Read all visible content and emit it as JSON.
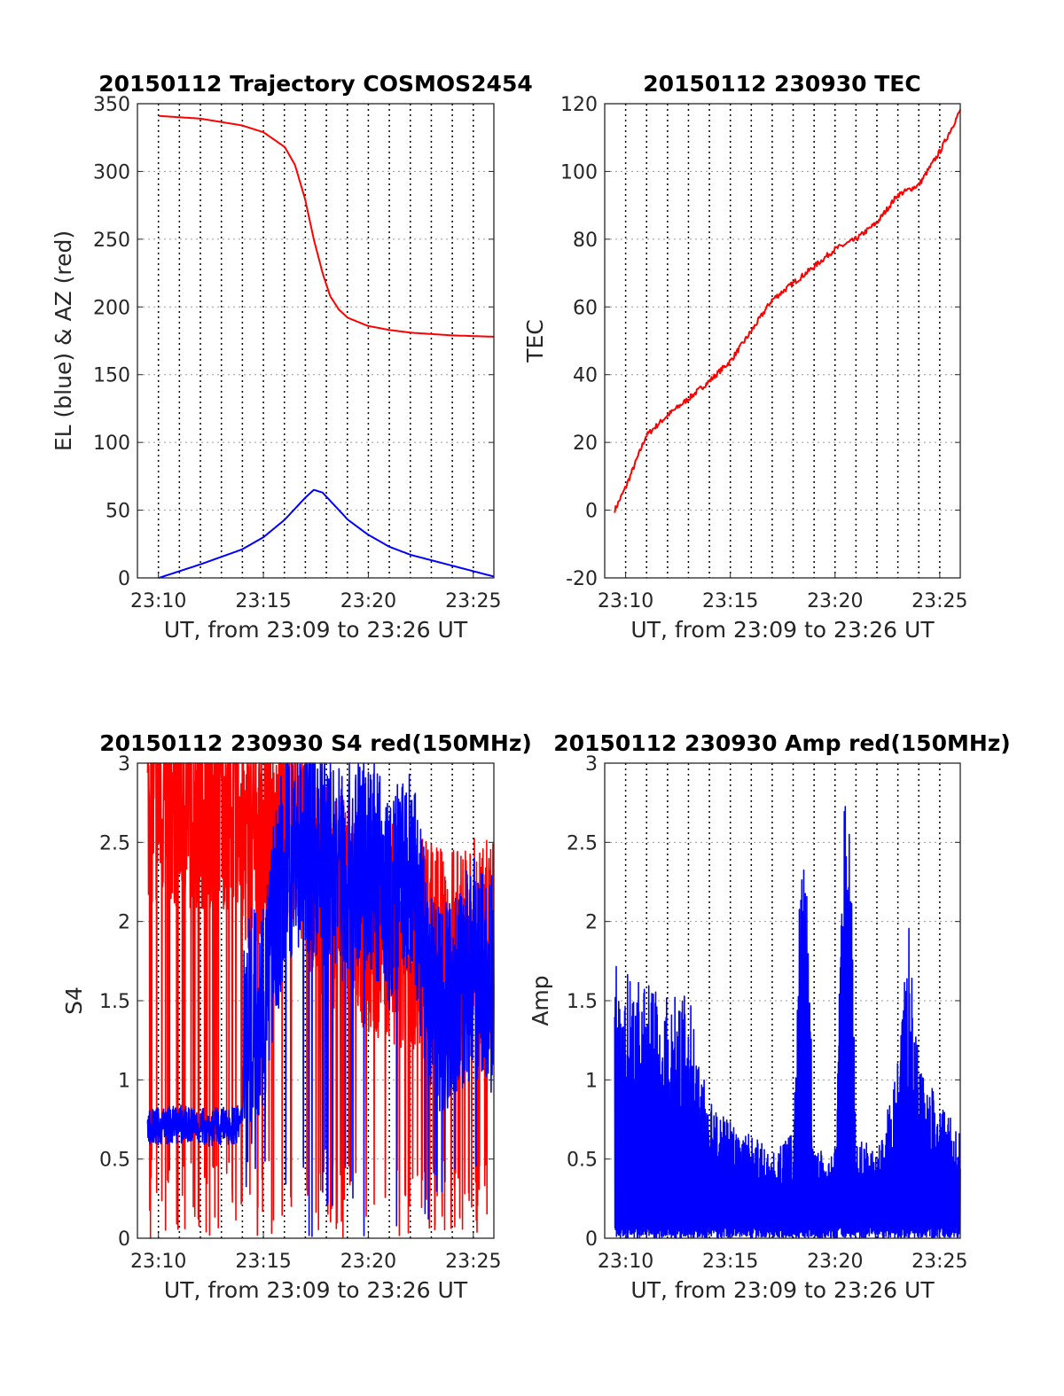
{
  "colors": {
    "el": "#0000ff",
    "az": "#ff0000",
    "grid": "#000000",
    "axis": "#262626"
  },
  "chart_data": [
    {
      "type": "line",
      "title": "20150112 Trajectory COSMOS2454",
      "xlabel": "UT, from 23:09 to 23:26 UT",
      "ylabel": "EL (blue) & AZ (red)",
      "xlim": [
        23.15,
        23.433
      ],
      "ylim": [
        0,
        350
      ],
      "yticks": [
        0,
        50,
        100,
        150,
        200,
        250,
        300,
        350
      ],
      "xticks": [
        "23:10",
        "23:15",
        "23:20",
        "23:25"
      ],
      "grid": "dotted vertical every minute, dotted horizontal at y ticks",
      "series": [
        {
          "color": "red",
          "x": [
            23.167,
            23.2,
            23.233,
            23.25,
            23.267,
            23.275,
            23.283,
            23.29,
            23.297,
            23.303,
            23.31,
            23.317,
            23.333,
            23.35,
            23.367,
            23.4,
            23.433
          ],
          "values": [
            341,
            339,
            334,
            329,
            318,
            305,
            280,
            250,
            225,
            208,
            198,
            192,
            186,
            183,
            181,
            179,
            178
          ]
        },
        {
          "color": "blue",
          "x": [
            23.167,
            23.2,
            23.233,
            23.25,
            23.267,
            23.283,
            23.29,
            23.297,
            23.303,
            23.31,
            23.317,
            23.333,
            23.35,
            23.367,
            23.4,
            23.433
          ],
          "values": [
            0,
            10,
            21,
            30,
            43,
            59,
            65,
            63,
            57,
            50,
            43,
            32,
            23,
            17,
            9,
            1
          ]
        }
      ]
    },
    {
      "type": "line",
      "title": "20150112 230930 TEC",
      "xlabel": "UT, from 23:09 to 23:26 UT",
      "ylabel": "TEC",
      "xlim": [
        23.15,
        23.433
      ],
      "ylim": [
        -20,
        120
      ],
      "yticks": [
        -20,
        0,
        20,
        40,
        60,
        80,
        100,
        120
      ],
      "xticks": [
        "23:10",
        "23:15",
        "23:20",
        "23:25"
      ],
      "series": [
        {
          "color": "red",
          "x": [
            23.158,
            23.167,
            23.183,
            23.2,
            23.217,
            23.233,
            23.25,
            23.267,
            23.283,
            23.3,
            23.317,
            23.333,
            23.35,
            23.367,
            23.383,
            23.4,
            23.417,
            23.433
          ],
          "values": [
            0,
            7,
            22,
            28,
            33,
            38,
            44,
            53,
            62,
            67,
            72,
            77,
            80,
            85,
            93,
            96,
            106,
            118
          ]
        }
      ]
    },
    {
      "type": "line",
      "title": "20150112 230930 S4 red(150MHz)",
      "xlabel": "UT, from 23:09 to 23:26 UT",
      "ylabel": "S4",
      "xlim": [
        23.15,
        23.433
      ],
      "ylim": [
        0,
        3
      ],
      "yticks": [
        0,
        0.5,
        1,
        1.5,
        2,
        2.5,
        3
      ],
      "yticklabels": [
        "0",
        "0.5",
        "1",
        "1.5",
        "2",
        "2.5",
        "3"
      ],
      "xticks": [
        "23:10",
        "23:15",
        "23:20",
        "23:25"
      ],
      "series": [
        {
          "color": "red",
          "x": [
            23.158,
            23.233,
            23.234,
            23.267,
            23.3,
            23.333,
            23.367,
            23.4,
            23.433
          ],
          "values": [
            2.5,
            2.5,
            2.2,
            2.4,
            1.9,
            1.7,
            1.6,
            1.5,
            1.6
          ]
        },
        {
          "color": "blue",
          "x": [
            23.158,
            23.183,
            23.208,
            23.233,
            23.234,
            23.25,
            23.267,
            23.283,
            23.3,
            23.317,
            23.333,
            23.35,
            23.367,
            23.383,
            23.4,
            23.417,
            23.433
          ],
          "values": [
            0.7,
            0.72,
            0.7,
            0.72,
            1.4,
            1.5,
            2.4,
            2.5,
            2.4,
            2.3,
            2.4,
            2.1,
            2.3,
            1.5,
            1.5,
            1.7,
            1.6
          ]
        }
      ]
    },
    {
      "type": "line",
      "title": "20150112 230930 Amp red(150MHz)",
      "xlabel": "UT, from 23:09 to 23:26 UT",
      "ylabel": "Amp",
      "xlim": [
        23.15,
        23.433
      ],
      "ylim": [
        0,
        3
      ],
      "yticks": [
        0,
        0.5,
        1,
        1.5,
        2,
        2.5,
        3
      ],
      "yticklabels": [
        "0",
        "0.5",
        "1",
        "1.5",
        "2",
        "2.5",
        "3"
      ],
      "xticks": [
        "23:10",
        "23:15",
        "23:20",
        "23:25"
      ],
      "series": [
        {
          "color": "blue",
          "x": [
            23.158,
            23.175,
            23.2,
            23.217,
            23.233,
            23.25,
            23.267,
            23.283,
            23.3,
            23.308,
            23.317,
            23.333,
            23.342,
            23.345,
            23.35,
            23.367,
            23.375,
            23.383,
            23.392,
            23.4,
            23.417,
            23.433
          ],
          "values": [
            1.6,
            1.5,
            1.4,
            1.4,
            0.8,
            0.7,
            0.6,
            0.5,
            0.6,
            2.7,
            0.5,
            0.5,
            2.9,
            2.8,
            0.6,
            0.5,
            0.8,
            1.0,
            1.8,
            1.0,
            0.8,
            0.6
          ]
        }
      ]
    }
  ]
}
